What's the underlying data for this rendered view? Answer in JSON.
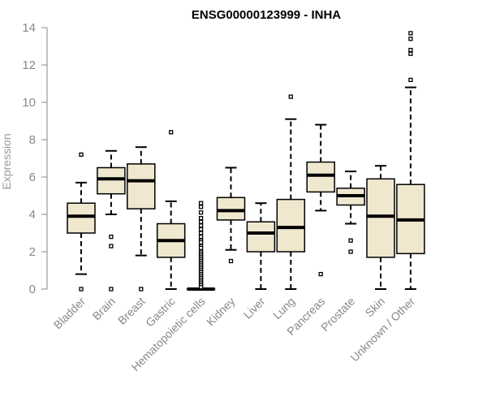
{
  "chart_data": {
    "type": "boxplot",
    "title": "ENSG00000123999 - INHA",
    "ylabel": "Expression",
    "xlabel": "",
    "ylim": [
      0,
      14
    ],
    "yticks": [
      0,
      2,
      4,
      6,
      8,
      10,
      12,
      14
    ],
    "colors": {
      "box_fill": "#efe8cf",
      "box_stroke": "#000000",
      "axis": "#888888",
      "median": "#000000"
    },
    "categories": [
      "Bladder",
      "Brain",
      "Breast",
      "Gastric",
      "Hematopoietic cells",
      "Kidney",
      "Liver",
      "Lung",
      "Pancreas",
      "Prostate",
      "Skin",
      "Unknown / Other"
    ],
    "boxes": [
      {
        "label": "Bladder",
        "whisker_low": 0.8,
        "q1": 3.0,
        "median": 3.9,
        "q3": 4.6,
        "whisker_high": 5.7,
        "outliers": [
          7.2,
          0.0
        ]
      },
      {
        "label": "Brain",
        "whisker_low": 4.0,
        "q1": 5.1,
        "median": 5.9,
        "q3": 6.5,
        "whisker_high": 7.4,
        "outliers": [
          2.8,
          2.3,
          0.0
        ]
      },
      {
        "label": "Breast",
        "whisker_low": 1.8,
        "q1": 4.3,
        "median": 5.8,
        "q3": 6.7,
        "whisker_high": 7.6,
        "outliers": [
          0.0
        ]
      },
      {
        "label": "Gastric",
        "whisker_low": 0.0,
        "q1": 1.7,
        "median": 2.6,
        "q3": 3.5,
        "whisker_high": 4.7,
        "outliers": [
          8.4
        ]
      },
      {
        "label": "Hematopoietic cells",
        "whisker_low": 0.0,
        "q1": 0.0,
        "median": 0.0,
        "q3": 0.0,
        "whisker_high": 0.0,
        "outliers": [
          4.6,
          4.4,
          4.1,
          3.8,
          3.6,
          3.4,
          3.2,
          3.0,
          2.8,
          2.6,
          2.5,
          2.3,
          2.2,
          2.0,
          1.9,
          1.8,
          1.7,
          1.6,
          1.5,
          1.4,
          1.3,
          1.2,
          1.1,
          1.0,
          0.9,
          0.8,
          0.7,
          0.6,
          0.5,
          0.4,
          0.3,
          0.2,
          0.1
        ]
      },
      {
        "label": "Kidney",
        "whisker_low": 2.1,
        "q1": 3.7,
        "median": 4.2,
        "q3": 4.9,
        "whisker_high": 6.5,
        "outliers": [
          1.5
        ]
      },
      {
        "label": "Liver",
        "whisker_low": 0.0,
        "q1": 2.0,
        "median": 3.0,
        "q3": 3.6,
        "whisker_high": 4.6,
        "outliers": []
      },
      {
        "label": "Lung",
        "whisker_low": 0.0,
        "q1": 2.0,
        "median": 3.3,
        "q3": 4.8,
        "whisker_high": 9.1,
        "outliers": [
          10.3
        ]
      },
      {
        "label": "Pancreas",
        "whisker_low": 4.2,
        "q1": 5.2,
        "median": 6.1,
        "q3": 6.8,
        "whisker_high": 8.8,
        "outliers": [
          0.8
        ]
      },
      {
        "label": "Prostate",
        "whisker_low": 3.5,
        "q1": 4.5,
        "median": 5.0,
        "q3": 5.4,
        "whisker_high": 6.3,
        "outliers": [
          2.6,
          2.0
        ]
      },
      {
        "label": "Skin",
        "whisker_low": 0.0,
        "q1": 1.7,
        "median": 3.9,
        "q3": 5.9,
        "whisker_high": 6.6,
        "outliers": []
      },
      {
        "label": "Unknown / Other",
        "whisker_low": 0.0,
        "q1": 1.9,
        "median": 3.7,
        "q3": 5.6,
        "whisker_high": 10.8,
        "outliers": [
          11.2,
          12.6,
          12.8,
          13.4,
          13.7
        ]
      }
    ]
  }
}
